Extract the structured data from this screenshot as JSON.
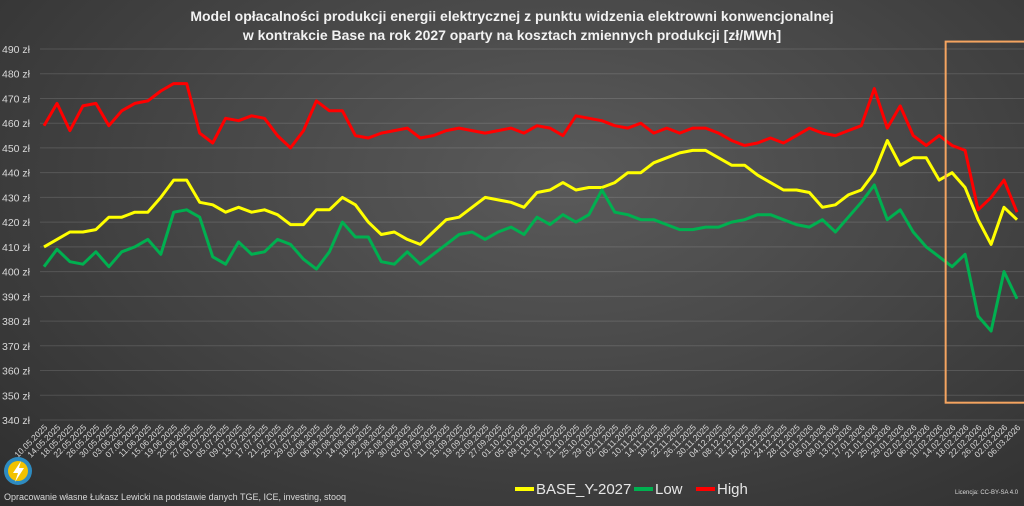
{
  "chart_data": {
    "type": "line",
    "title": [
      "Model opłacalności produkcji energii elektrycznej z punktu widzenia elektrowni konwencjonalnej",
      "w kontrakcie Base na rok 2027 oparty na kosztach zmiennych produkcji [zł/MWh]"
    ],
    "xlabel": "",
    "ylabel": "",
    "ylim": [
      340,
      490
    ],
    "yticks": [
      "340 zł",
      "350 zł",
      "360 zł",
      "370 zł",
      "380 zł",
      "390 zł",
      "400 zł",
      "410 zł",
      "420 zł",
      "430 zł",
      "440 zł",
      "450 zł",
      "460 zł",
      "470 zł",
      "480 zł",
      "490 zł"
    ],
    "ytick_values": [
      340,
      350,
      360,
      370,
      380,
      390,
      400,
      410,
      420,
      430,
      440,
      450,
      460,
      470,
      480,
      490
    ],
    "grid": true,
    "legend_position": "bottom-center",
    "x": [
      "10.05.2025",
      "14.05.2025",
      "18.05.2025",
      "22.05.2025",
      "26.05.2025",
      "30.05.2025",
      "03.06.2025",
      "07.06.2025",
      "11.06.2025",
      "15.06.2025",
      "19.06.2025",
      "23.06.2025",
      "27.06.2025",
      "01.07.2025",
      "05.07.2025",
      "09.07.2025",
      "13.07.2025",
      "17.07.2025",
      "21.07.2025",
      "25.07.2025",
      "29.07.2025",
      "02.08.2025",
      "06.08.2025",
      "10.08.2025",
      "14.08.2025",
      "18.08.2025",
      "22.08.2025",
      "26.08.2025",
      "30.08.2025",
      "03.09.2025",
      "07.09.2025",
      "11.09.2025",
      "15.09.2025",
      "19.09.2025",
      "23.09.2025",
      "27.09.2025",
      "01.10.2025",
      "05.10.2025",
      "09.10.2025",
      "13.10.2025",
      "17.10.2025",
      "21.10.2025",
      "25.10.2025",
      "29.10.2025",
      "02.11.2025",
      "06.11.2025",
      "10.11.2025",
      "14.11.2025",
      "18.11.2025",
      "22.11.2025",
      "26.11.2025",
      "30.11.2025",
      "04.12.2025",
      "08.12.2025",
      "12.12.2025",
      "16.12.2025",
      "20.12.2025",
      "24.12.2025",
      "28.12.2025",
      "01.01.2026",
      "05.01.2026",
      "09.01.2026",
      "13.01.2026",
      "17.01.2026",
      "21.01.2026",
      "25.01.2026",
      "29.01.2026",
      "02.02.2026",
      "06.02.2026",
      "10.02.2026",
      "14.02.2026",
      "18.02.2026",
      "22.02.2026",
      "26.02.2026",
      "02.03.2026",
      "06.03.2026"
    ],
    "series": [
      {
        "name": "BASE_Y-2027",
        "color": "#ffff00",
        "values": [
          410,
          413,
          416,
          416,
          417,
          422,
          422,
          424,
          424,
          430,
          437,
          437,
          428,
          427,
          424,
          426,
          424,
          425,
          423,
          419,
          419,
          425,
          425,
          430,
          427,
          420,
          415,
          416,
          413,
          411,
          416,
          421,
          422,
          426,
          430,
          429,
          428,
          426,
          432,
          433,
          436,
          433,
          434,
          434,
          436,
          440,
          440,
          444,
          446,
          448,
          449,
          449,
          446,
          443,
          443,
          439,
          436,
          433,
          433,
          432,
          426,
          427,
          431,
          433,
          440,
          453,
          443,
          446,
          446,
          437,
          440,
          434,
          421,
          411,
          426,
          421
        ]
      },
      {
        "name": "Low",
        "color": "#00b050",
        "values": [
          402,
          409,
          404,
          403,
          408,
          402,
          408,
          410,
          413,
          407,
          424,
          425,
          422,
          406,
          403,
          412,
          407,
          408,
          413,
          411,
          405,
          401,
          408,
          420,
          414,
          414,
          404,
          403,
          408,
          403,
          407,
          411,
          415,
          416,
          413,
          416,
          418,
          415,
          422,
          419,
          423,
          420,
          423,
          433,
          424,
          423,
          421,
          421,
          419,
          417,
          417,
          418,
          418,
          420,
          421,
          423,
          423,
          421,
          419,
          418,
          421,
          416,
          422,
          428,
          435,
          421,
          425,
          416,
          410,
          406,
          402,
          407,
          382,
          376,
          400,
          389
        ]
      },
      {
        "name": "High",
        "color": "#ff0000",
        "values": [
          459,
          468,
          457,
          467,
          468,
          459,
          465,
          468,
          469,
          473,
          476,
          476,
          456,
          452,
          462,
          461,
          463,
          462,
          455,
          450,
          457,
          469,
          465,
          465,
          455,
          454,
          456,
          457,
          458,
          454,
          455,
          457,
          458,
          457,
          456,
          457,
          458,
          456,
          459,
          458,
          455,
          463,
          462,
          461,
          459,
          458,
          460,
          456,
          458,
          456,
          458,
          458,
          456,
          453,
          451,
          452,
          454,
          452,
          455,
          458,
          456,
          455,
          457,
          459,
          474,
          458,
          467,
          455,
          451,
          455,
          451,
          449,
          425,
          430,
          437,
          424
        ]
      }
    ],
    "highlight": {
      "from_index": 69.5,
      "y_range": [
        347,
        493
      ],
      "color": "#f4a460"
    }
  },
  "footer": {
    "source": "Opracowanie własne Łukasz Lewicki na podstawie danych TGE, ICE, investing, stooq",
    "license": "Licencja: CC-BY-SA 4.0"
  }
}
